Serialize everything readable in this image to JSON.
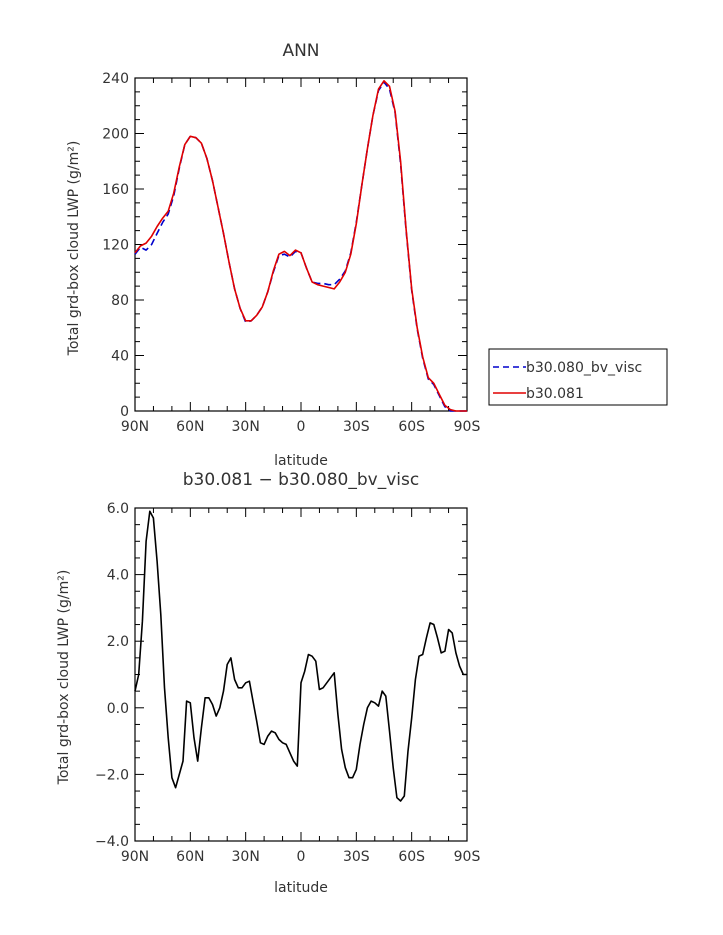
{
  "chart_data": [
    {
      "type": "line",
      "title": "ANN",
      "xlabel": "latitude",
      "ylabel": "Total grd-box cloud LWP (g/m²)",
      "xticks": [
        "90N",
        "60N",
        "30N",
        "0",
        "30S",
        "60S",
        "90S"
      ],
      "yticks": [
        "0",
        "40",
        "80",
        "120",
        "160",
        "200",
        "240"
      ],
      "xlim": [
        90,
        -90
      ],
      "ylim": [
        0,
        240
      ],
      "legend_position": "right",
      "series": [
        {
          "name": "b30.080_bv_visc",
          "color": "#0000cc",
          "style": "dashed",
          "x": [
            90,
            87,
            84,
            81,
            78,
            75,
            72,
            69,
            66,
            63,
            60,
            57,
            54,
            51,
            48,
            45,
            42,
            39,
            36,
            33,
            30,
            27,
            24,
            21,
            18,
            15,
            12,
            9,
            6,
            3,
            0,
            -3,
            -6,
            -9,
            -12,
            -15,
            -18,
            -21,
            -24,
            -27,
            -30,
            -33,
            -36,
            -39,
            -42,
            -45,
            -48,
            -51,
            -54,
            -57,
            -60,
            -63,
            -66,
            -69,
            -72,
            -75,
            -78,
            -81,
            -84,
            -87,
            -90
          ],
          "y": [
            113,
            118,
            116,
            120,
            128,
            136,
            142,
            155,
            175,
            192,
            198,
            197,
            193,
            182,
            166,
            147,
            128,
            107,
            88,
            74,
            64,
            65,
            69,
            75,
            86,
            100,
            112,
            113,
            111,
            115,
            114,
            103,
            93,
            92,
            92,
            91,
            91,
            95,
            101,
            114,
            136,
            163,
            189,
            213,
            231,
            237,
            232,
            215,
            178,
            130,
            87,
            59,
            38,
            23,
            19,
            11,
            3,
            0,
            0,
            0,
            0
          ]
        },
        {
          "name": "b30.081",
          "color": "#e00000",
          "style": "solid",
          "x": [
            90,
            87,
            84,
            81,
            78,
            75,
            72,
            69,
            66,
            63,
            60,
            57,
            54,
            51,
            48,
            45,
            42,
            39,
            36,
            33,
            30,
            27,
            24,
            21,
            18,
            15,
            12,
            9,
            6,
            3,
            0,
            -3,
            -6,
            -9,
            -12,
            -15,
            -18,
            -21,
            -24,
            -27,
            -30,
            -33,
            -36,
            -39,
            -42,
            -45,
            -48,
            -51,
            -54,
            -57,
            -60,
            -63,
            -66,
            -69,
            -72,
            -75,
            -78,
            -81,
            -84,
            -87,
            -90
          ],
          "y": [
            114,
            119,
            121,
            126,
            133,
            139,
            144,
            157,
            176,
            192,
            198,
            197,
            193,
            182,
            166,
            147,
            128,
            107,
            88,
            74,
            65,
            65,
            69,
            75,
            86,
            101,
            113,
            115,
            112,
            116,
            114,
            103,
            93,
            91,
            90,
            89,
            88,
            93,
            100,
            113,
            135,
            163,
            189,
            213,
            232,
            238,
            234,
            216,
            180,
            131,
            88,
            60,
            39,
            24,
            20,
            12,
            4,
            1,
            0,
            0,
            0
          ]
        }
      ]
    },
    {
      "type": "line",
      "title": "b30.081 − b30.080_bv_visc",
      "xlabel": "latitude",
      "ylabel": "Total grd-box cloud LWP (g/m²)",
      "xticks": [
        "90N",
        "60N",
        "30N",
        "0",
        "30S",
        "60S",
        "90S"
      ],
      "yticks": [
        "−4.0",
        "−2.0",
        "0.0",
        "2.0",
        "4.0",
        "6.0"
      ],
      "xlim": [
        90,
        -90
      ],
      "ylim": [
        -4,
        6
      ],
      "series": [
        {
          "color": "#000000",
          "style": "solid",
          "x": [
            90,
            88,
            86,
            84,
            82,
            80,
            78,
            76,
            74,
            72,
            70,
            68,
            66,
            64,
            62,
            60,
            58,
            56,
            54,
            52,
            50,
            48,
            46,
            44,
            42,
            40,
            38,
            36,
            34,
            32,
            30,
            28,
            26,
            24,
            22,
            20,
            18,
            16,
            14,
            12,
            10,
            8,
            6,
            4,
            2,
            0,
            -2,
            -4,
            -6,
            -8,
            -10,
            -12,
            -14,
            -16,
            -18,
            -20,
            -22,
            -24,
            -26,
            -28,
            -30,
            -32,
            -34,
            -36,
            -38,
            -40,
            -42,
            -44,
            -46,
            -48,
            -50,
            -52,
            -54,
            -56,
            -58,
            -60,
            -62,
            -64,
            -66,
            -68,
            -70,
            -72,
            -74,
            -76,
            -78,
            -80,
            -82,
            -84,
            -86,
            -88,
            -90
          ],
          "y": [
            0.5,
            1.0,
            2.6,
            5.0,
            5.9,
            5.7,
            4.4,
            2.8,
            0.6,
            -0.9,
            -2.1,
            -2.4,
            -2.0,
            -1.6,
            0.2,
            0.15,
            -0.9,
            -1.6,
            -0.6,
            0.3,
            0.3,
            0.1,
            -0.25,
            0.0,
            0.5,
            1.3,
            1.5,
            0.85,
            0.6,
            0.6,
            0.75,
            0.8,
            0.2,
            -0.4,
            -1.05,
            -1.1,
            -0.85,
            -0.7,
            -0.75,
            -0.95,
            -1.05,
            -1.1,
            -1.35,
            -1.6,
            -1.75,
            0.75,
            1.1,
            1.6,
            1.55,
            1.4,
            0.55,
            0.6,
            0.75,
            0.9,
            1.05,
            -0.2,
            -1.25,
            -1.8,
            -2.1,
            -2.1,
            -1.85,
            -1.1,
            -0.5,
            0.0,
            0.2,
            0.15,
            0.05,
            0.5,
            0.35,
            -0.7,
            -1.8,
            -2.7,
            -2.8,
            -2.65,
            -1.3,
            -0.3,
            0.85,
            1.55,
            1.6,
            2.1,
            2.55,
            2.5,
            2.1,
            1.65,
            1.7,
            2.35,
            2.25,
            1.65,
            1.25,
            1.0,
            1.0
          ]
        }
      ]
    }
  ]
}
